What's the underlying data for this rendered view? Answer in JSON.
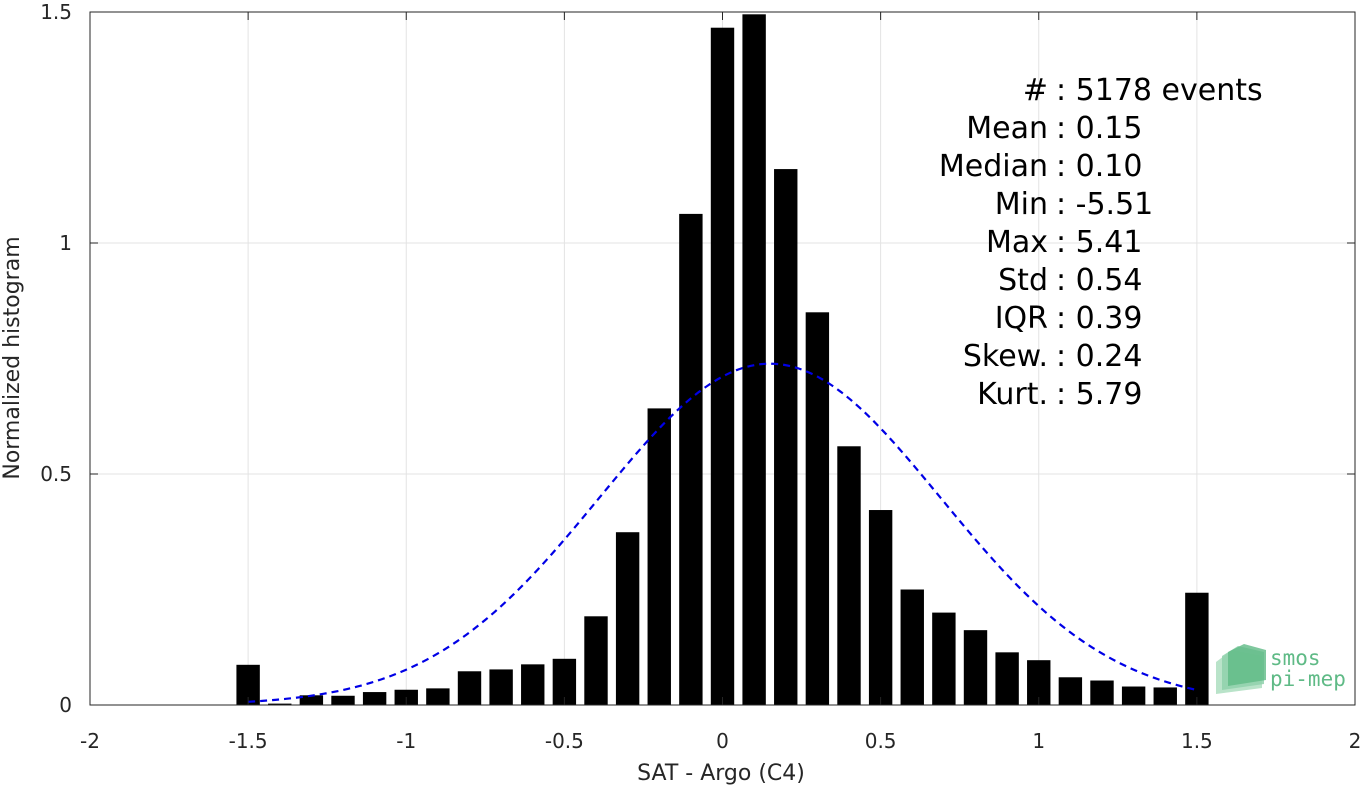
{
  "chart_data": {
    "type": "bar",
    "xlabel": "SAT - Argo (C4)",
    "ylabel": "Normalized histogram",
    "xlim": [
      -2,
      2
    ],
    "ylim": [
      0,
      1.5
    ],
    "xticks": [
      -2,
      -1.5,
      -1,
      -0.5,
      0,
      0.5,
      1,
      1.5,
      2
    ],
    "xtick_labels": [
      "-2",
      "-1.5",
      "-1",
      "-0.5",
      "0",
      "0.5",
      "1",
      "1.5",
      "2"
    ],
    "yticks": [
      0,
      0.5,
      1,
      1.5
    ],
    "ytick_labels": [
      "0",
      "0.5",
      "1",
      "1.5"
    ],
    "grid": true,
    "bar_color": "#000000",
    "bars": {
      "x": [
        -1.5,
        -1.4,
        -1.3,
        -1.2,
        -1.1,
        -1.0,
        -0.9,
        -0.8,
        -0.7,
        -0.6,
        -0.5,
        -0.4,
        -0.3,
        -0.2,
        -0.1,
        0.0,
        0.1,
        0.2,
        0.3,
        0.4,
        0.5,
        0.6,
        0.7,
        0.8,
        0.9,
        1.0,
        1.1,
        1.2,
        1.3,
        1.4,
        1.5
      ],
      "values": [
        0.087,
        0.003,
        0.021,
        0.02,
        0.028,
        0.033,
        0.036,
        0.073,
        0.077,
        0.088,
        0.1,
        0.192,
        0.374,
        0.642,
        1.063,
        1.466,
        1.495,
        1.16,
        0.85,
        0.56,
        0.422,
        0.25,
        0.2,
        0.162,
        0.114,
        0.097,
        0.06,
        0.053,
        0.04,
        0.038,
        0.243
      ]
    },
    "fit_curve": {
      "type": "normal",
      "mean": 0.15,
      "std": 0.54,
      "style": "dashed",
      "color": "#0000e6",
      "x_range": [
        -1.5,
        1.5
      ]
    }
  },
  "stats": [
    {
      "label": "#",
      "sep": "  : ",
      "value": "5178 events"
    },
    {
      "label": "Mean",
      "sep": " : ",
      "value": "0.15"
    },
    {
      "label": "Median",
      "sep": " : ",
      "value": "0.10"
    },
    {
      "label": "Min",
      "sep": " : ",
      "value": "-5.51"
    },
    {
      "label": "Max",
      "sep": " : ",
      "value": "5.41"
    },
    {
      "label": "Std",
      "sep": " : ",
      "value": "0.54"
    },
    {
      "label": "IQR",
      "sep": " : ",
      "value": "0.39"
    },
    {
      "label": "Skew.",
      "sep": " : ",
      "value": "0.24"
    },
    {
      "label": "Kurt.",
      "sep": " : ",
      "value": "5.79"
    }
  ],
  "logo": {
    "line1": "smos",
    "line2": "pi-mep",
    "color": "#5fba86"
  }
}
